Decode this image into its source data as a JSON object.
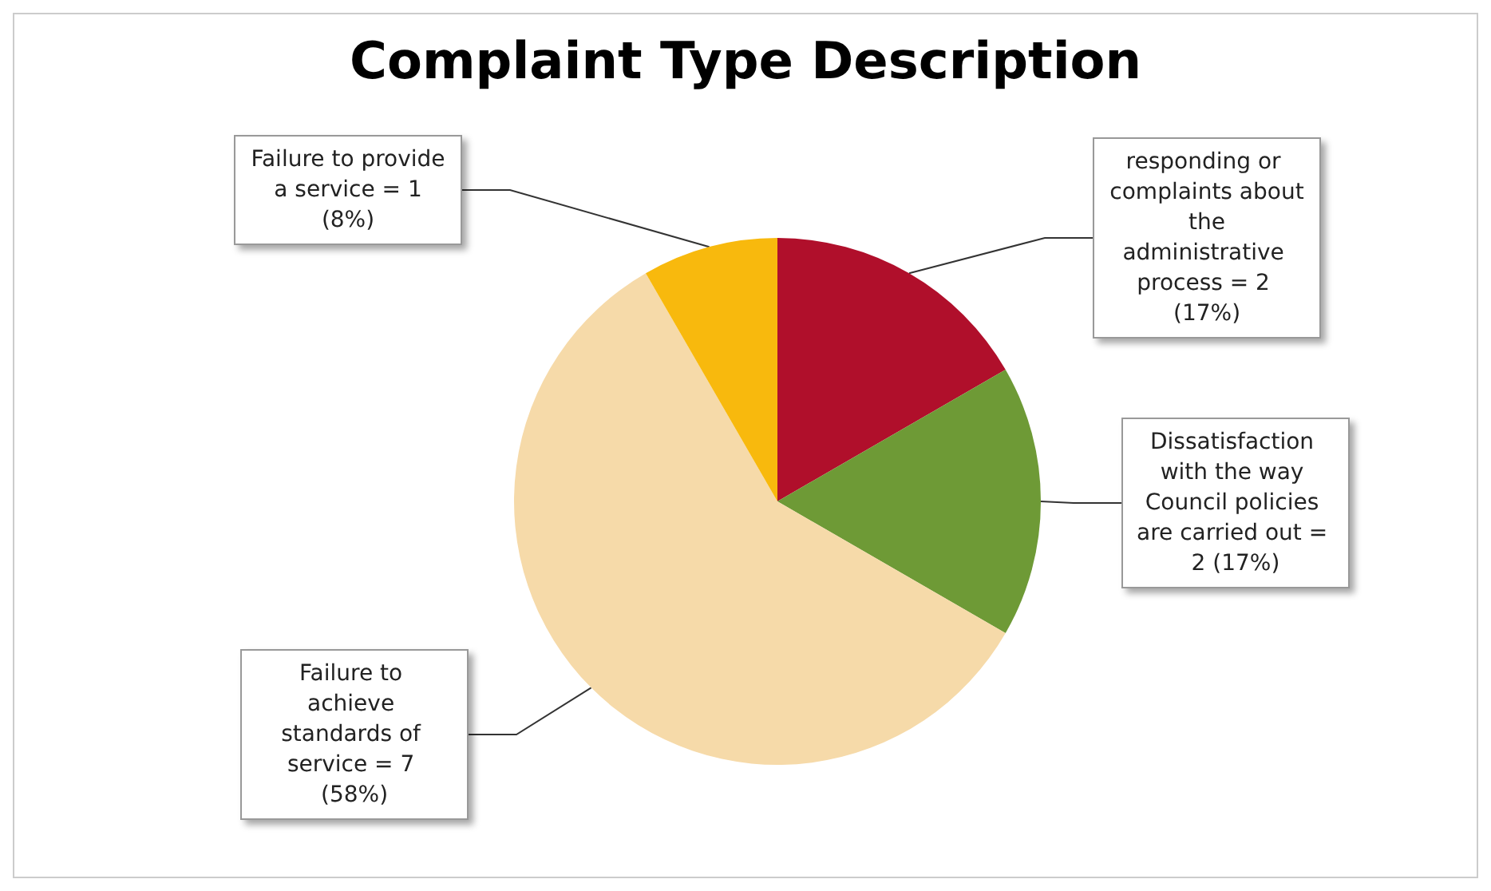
{
  "chart_data": {
    "type": "pie",
    "title": "Complaint Type Description",
    "categories": [
      "responding or complaints about the administrative process",
      "Dissatisfaction with the way Council policies are carried out",
      "Failure to achieve standards of service",
      "Failure to provide a service"
    ],
    "values": [
      2,
      2,
      7,
      1
    ],
    "value_labels": [
      "= 2 (17%)",
      "= 2 (17%)",
      "= 7 (58%)",
      "= 1 (8%)"
    ],
    "colors": [
      "#b00f2b",
      "#6e9a36",
      "#f6daa9",
      "#f8b90d"
    ],
    "legend": false
  }
}
